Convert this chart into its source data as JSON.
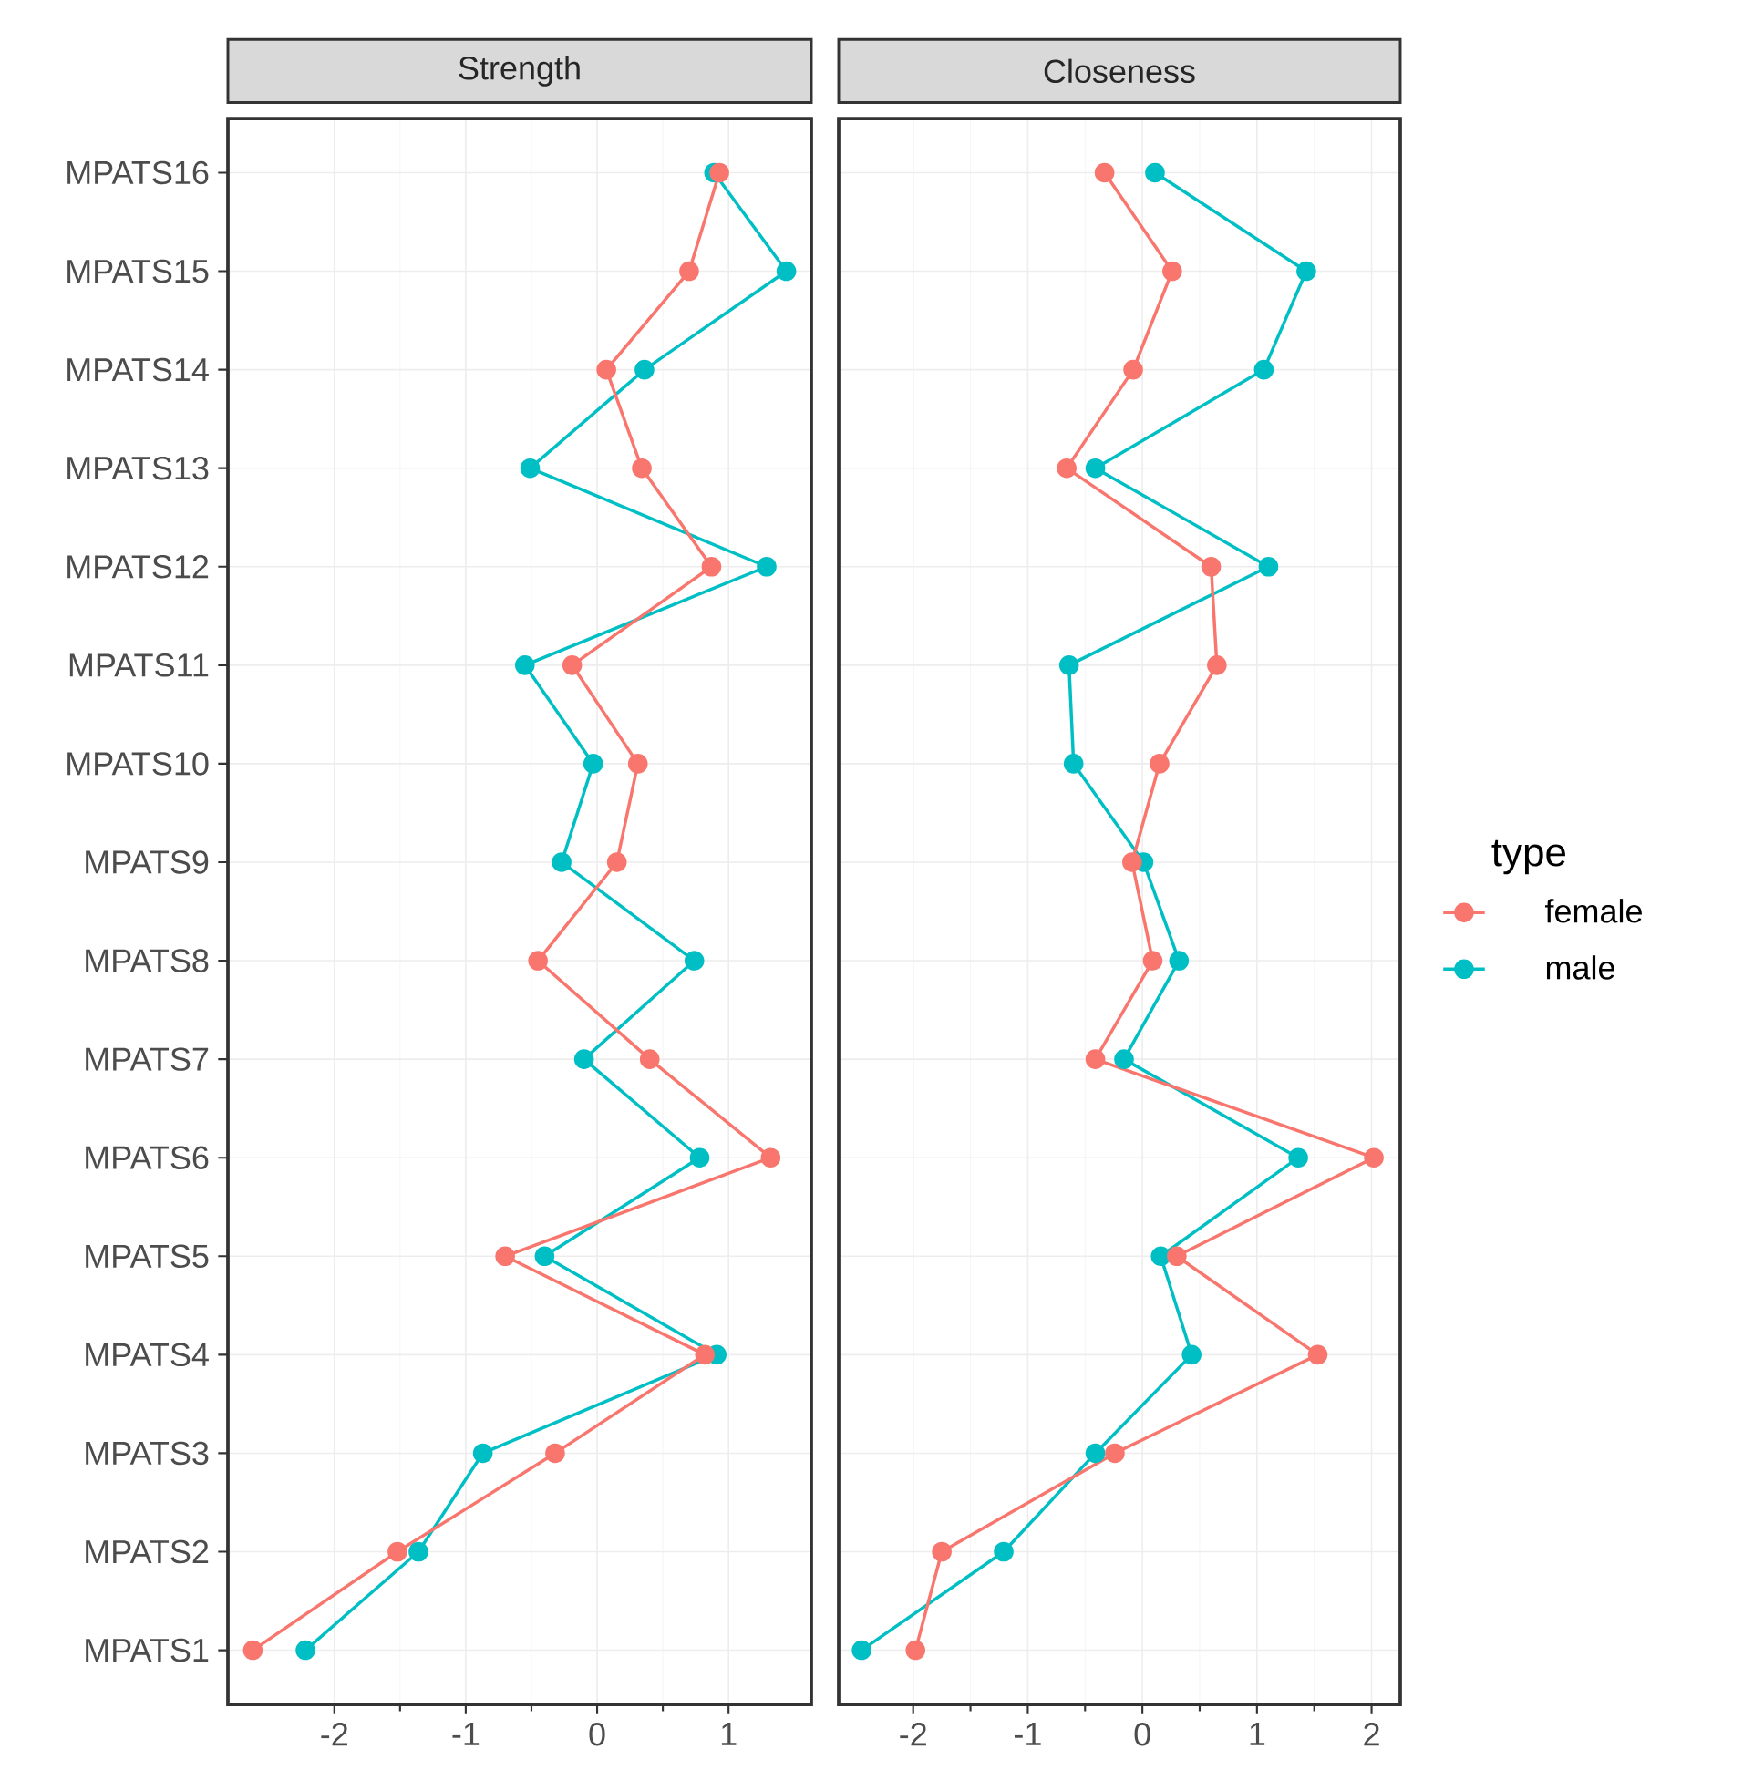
{
  "chart_data": [
    {
      "type": "line",
      "orientation": "horizontal",
      "title": "Strength",
      "categories": [
        "MPATS16",
        "MPATS15",
        "MPATS14",
        "MPATS13",
        "MPATS12",
        "MPATS11",
        "MPATS10",
        "MPATS9",
        "MPATS8",
        "MPATS7",
        "MPATS6",
        "MPATS5",
        "MPATS4",
        "MPATS3",
        "MPATS2",
        "MPATS1"
      ],
      "series": [
        {
          "color": "#f8766d",
          "values": [
            0.93,
            0.7,
            0.07,
            0.34,
            0.87,
            -0.19,
            0.31,
            0.15,
            -0.45,
            0.4,
            1.32,
            -0.7,
            0.82,
            -0.32,
            -1.52,
            -2.62
          ]
        },
        {
          "color": "#00bfc4",
          "values": [
            0.89,
            1.44,
            0.36,
            -0.51,
            1.29,
            -0.55,
            -0.03,
            -0.27,
            0.74,
            -0.1,
            0.78,
            -0.4,
            0.91,
            -0.87,
            -1.36,
            -2.22
          ]
        }
      ],
      "xlim": [
        -2.81,
        1.63
      ],
      "xticks": [
        -2,
        -1,
        0,
        1
      ],
      "grid": true,
      "marker": "circle",
      "legend": false
    },
    {
      "type": "line",
      "orientation": "horizontal",
      "title": "Closeness",
      "categories": [
        null,
        null,
        null,
        null,
        null,
        null,
        null,
        null,
        null,
        null,
        null,
        null,
        null,
        null,
        null,
        null
      ],
      "series": [
        {
          "name": "female",
          "color": "#f8766d",
          "values": [
            -0.33,
            0.26,
            -0.08,
            -0.66,
            0.6,
            0.65,
            0.15,
            -0.09,
            0.09,
            -0.41,
            2.02,
            0.3,
            1.53,
            -0.24,
            -1.75,
            -1.98
          ]
        },
        {
          "name": "male",
          "color": "#00bfc4",
          "values": [
            0.11,
            1.43,
            1.06,
            -0.41,
            1.1,
            -0.64,
            -0.6,
            0.01,
            0.32,
            -0.16,
            1.36,
            0.16,
            0.43,
            -0.41,
            -1.21,
            -2.45
          ]
        }
      ],
      "xlim": [
        -2.65,
        2.25
      ],
      "xticks": [
        -2,
        -1,
        0,
        1,
        2
      ],
      "grid": true,
      "marker": "circle",
      "tick_labels": "x",
      "legend": "right",
      "legend_title": "type"
    }
  ]
}
